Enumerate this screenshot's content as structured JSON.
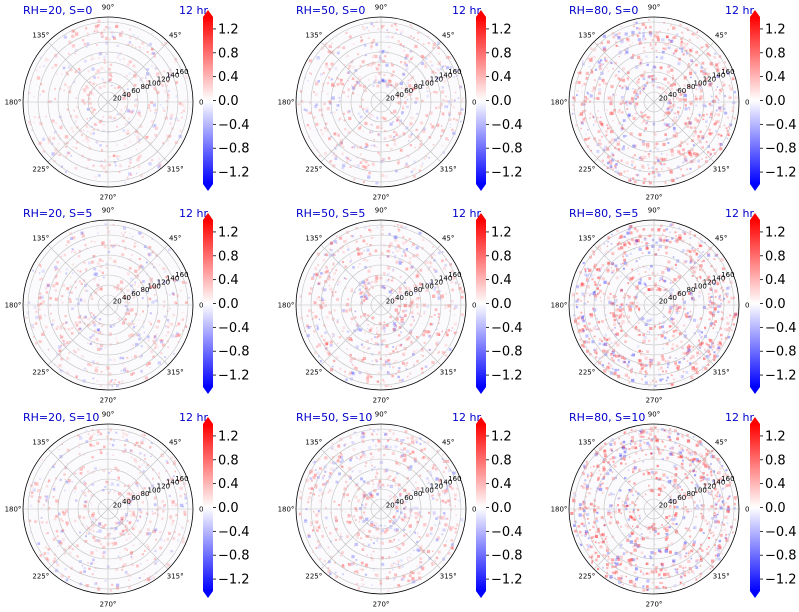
{
  "chart_data": [
    {
      "type": "heatmap",
      "projection": "polar",
      "title_left": "RH=20, S=0",
      "title_right": "12 hr",
      "intensity": 0.25
    },
    {
      "type": "heatmap",
      "projection": "polar",
      "title_left": "RH=50, S=0",
      "title_right": "12 hr",
      "intensity": 0.35
    },
    {
      "type": "heatmap",
      "projection": "polar",
      "title_left": "RH=80, S=0",
      "title_right": "12 hr",
      "intensity": 0.65
    },
    {
      "type": "heatmap",
      "projection": "polar",
      "title_left": "RH=20, S=5",
      "title_right": "12 hr",
      "intensity": 0.3
    },
    {
      "type": "heatmap",
      "projection": "polar",
      "title_left": "RH=50, S=5",
      "title_right": "12 hr",
      "intensity": 0.45
    },
    {
      "type": "heatmap",
      "projection": "polar",
      "title_left": "RH=80, S=5",
      "title_right": "12 hr",
      "intensity": 0.75
    },
    {
      "type": "heatmap",
      "projection": "polar",
      "title_left": "RH=20, S=10",
      "title_right": "12 hr",
      "intensity": 0.3
    },
    {
      "type": "heatmap",
      "projection": "polar",
      "title_left": "RH=50, S=10",
      "title_right": "12 hr",
      "intensity": 0.45
    },
    {
      "type": "heatmap",
      "projection": "polar",
      "title_left": "RH=80, S=10",
      "title_right": "12 hr",
      "intensity": 0.8
    }
  ],
  "shared": {
    "angle_ticks": [
      "0°",
      "45°",
      "90°",
      "135°",
      "180°",
      "225°",
      "270°",
      "315°"
    ],
    "angle_values": [
      0,
      45,
      90,
      135,
      180,
      225,
      270,
      315
    ],
    "radial_ticks": [
      "20",
      "40",
      "60",
      "80",
      "100",
      "120",
      "140",
      "160"
    ],
    "radial_values": [
      20,
      40,
      60,
      80,
      100,
      120,
      140,
      160
    ],
    "rlim": [
      0,
      170
    ],
    "radial_label_angle": 22.5,
    "colorbar_ticks": [
      "1.2",
      "0.8",
      "0.4",
      "0.0",
      "−0.4",
      "−0.8",
      "−1.2"
    ],
    "colorbar_values": [
      1.2,
      0.8,
      0.4,
      0.0,
      -0.4,
      -0.8,
      -1.2
    ],
    "clim": [
      -1.4,
      1.4
    ],
    "colormap": "bwr",
    "colors": {
      "positive": "#ff0000",
      "negative": "#0000ff",
      "mid": "#ffffff",
      "title": "#0000cc",
      "grid": "#c8c8c8"
    }
  }
}
